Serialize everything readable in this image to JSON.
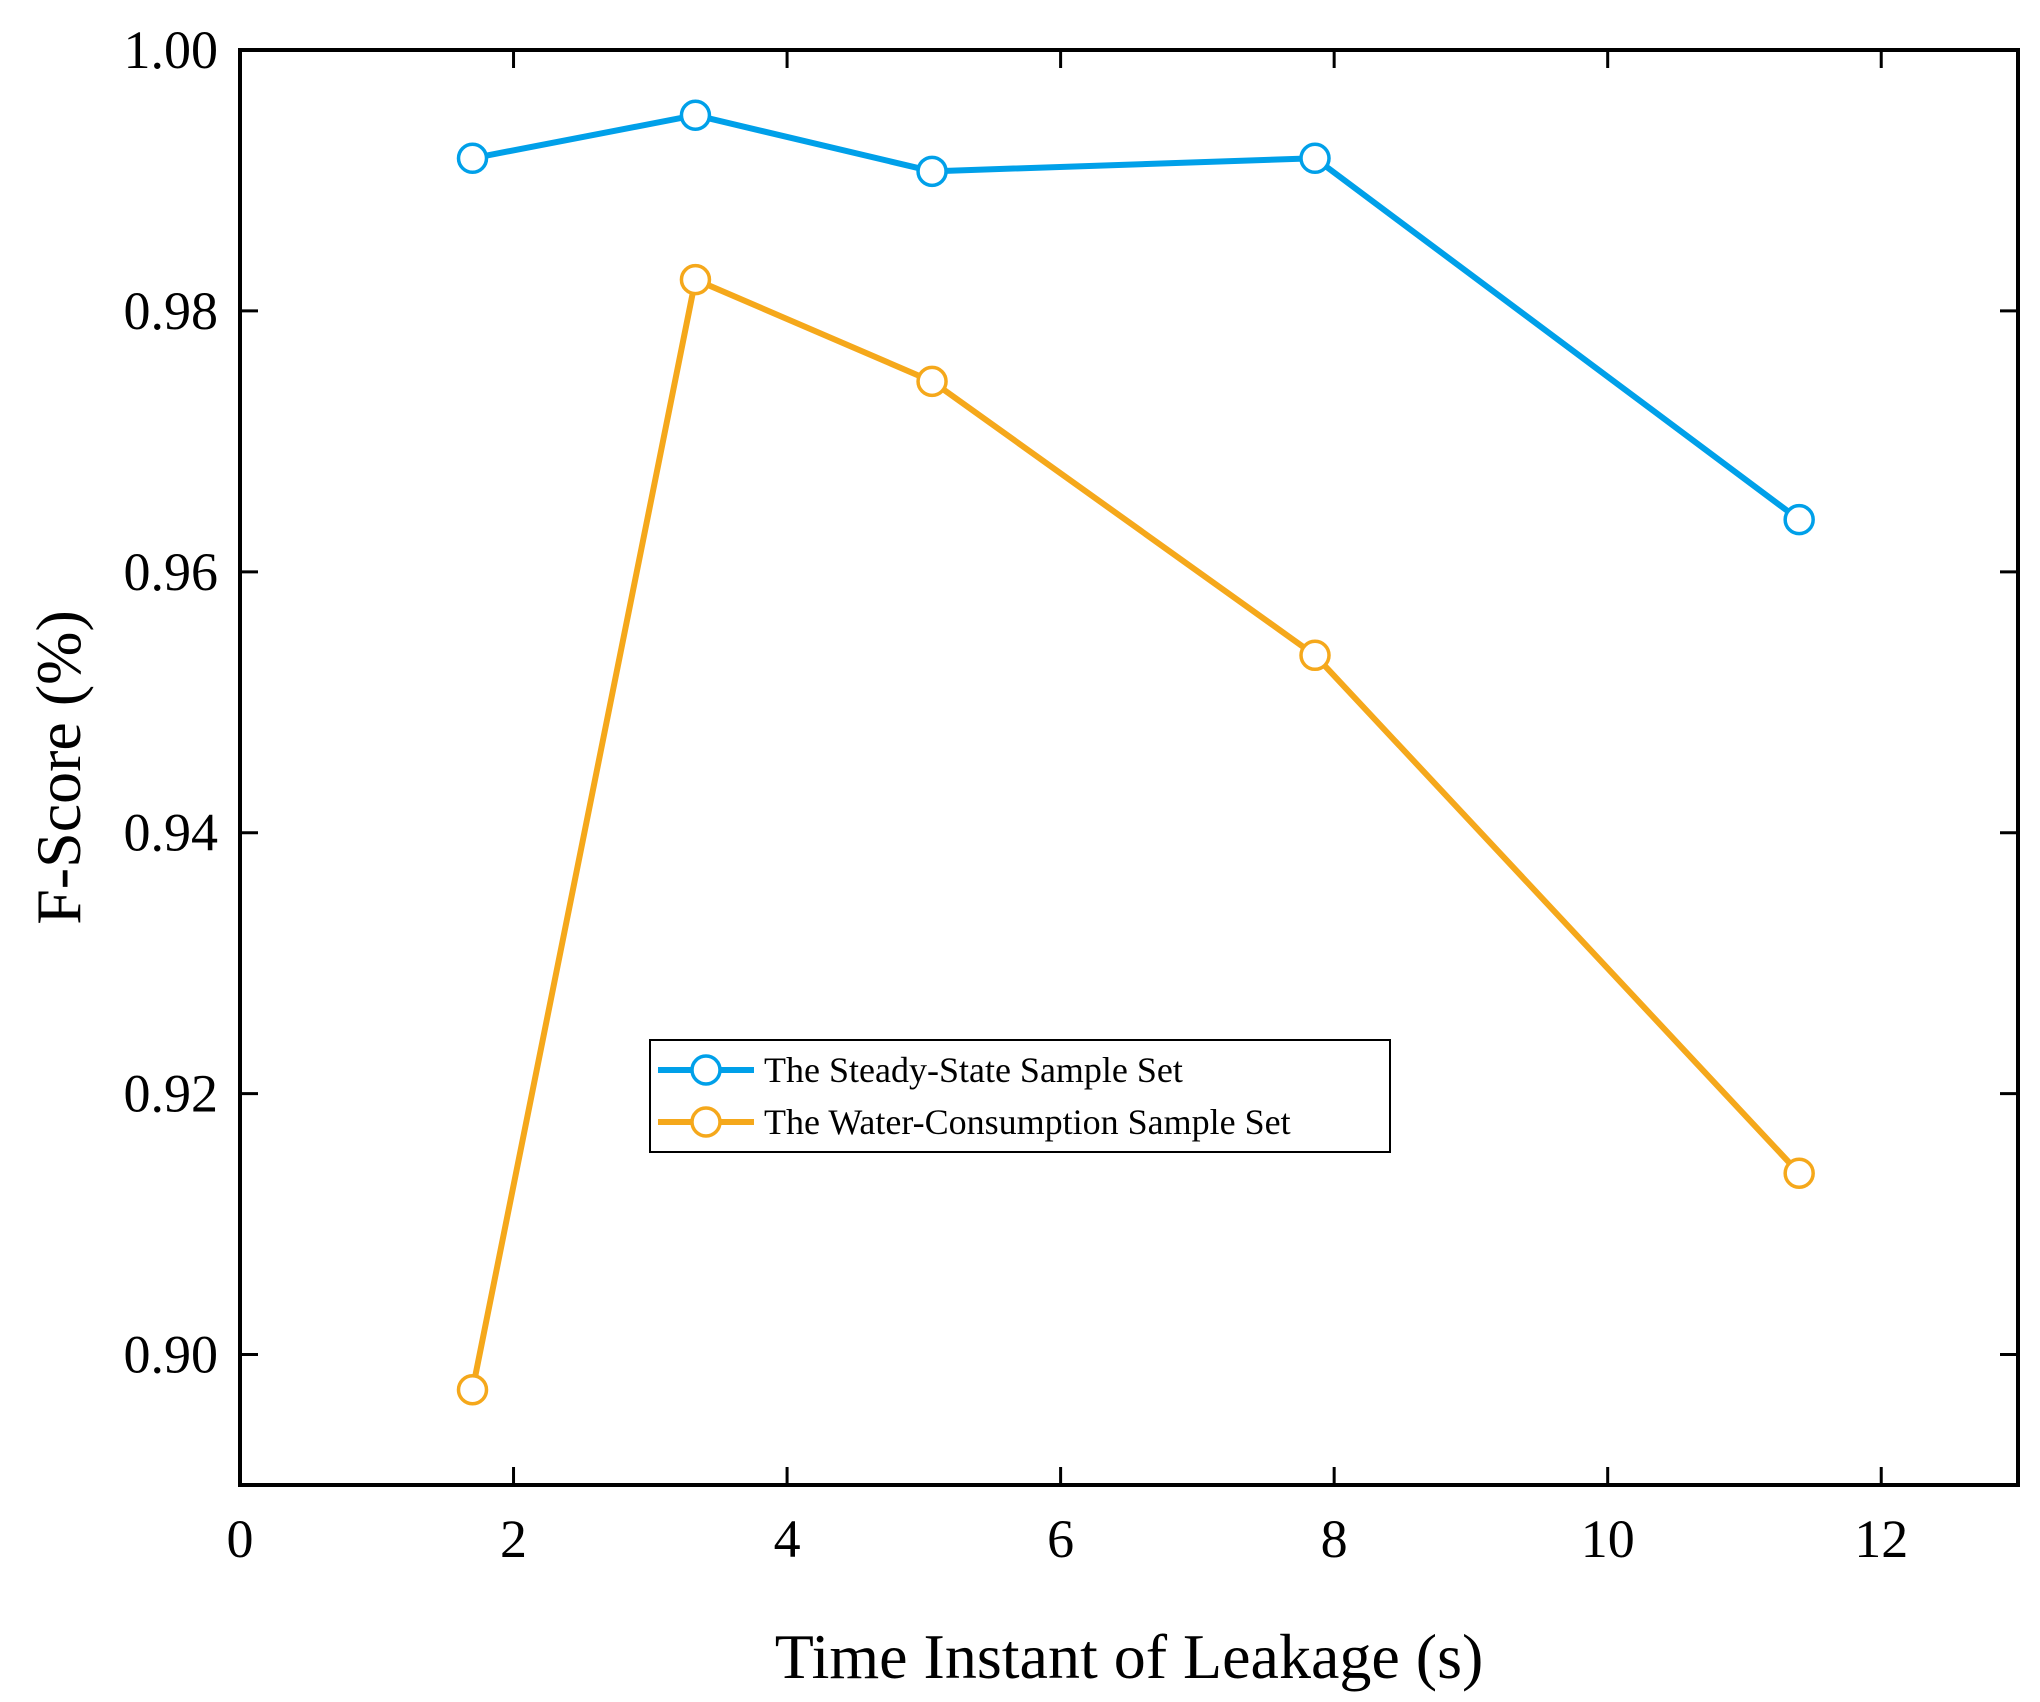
{
  "chart_data": {
    "type": "line",
    "title": "",
    "xlabel": "Time Instant of Leakage (s)",
    "ylabel": "F-Score (%)",
    "xlim": [
      0,
      13
    ],
    "ylim": [
      0.89,
      1.0
    ],
    "xticks": [
      0,
      2,
      4,
      6,
      8,
      10,
      12
    ],
    "yticks": [
      0.9,
      0.92,
      0.94,
      0.96,
      0.98,
      1.0
    ],
    "xtick_labels": [
      "0",
      "2",
      "4",
      "6",
      "8",
      "10",
      "12"
    ],
    "ytick_labels": [
      "0.90",
      "0.92",
      "0.94",
      "0.96",
      "0.98",
      "1.00"
    ],
    "grid": false,
    "legend_position": "center",
    "series": [
      {
        "name": "The Steady-State Sample Set",
        "color": "#00A0E9",
        "x": [
          1.7,
          3.33,
          5.06,
          7.86,
          11.4
        ],
        "y": [
          0.9917,
          0.995,
          0.9907,
          0.9917,
          0.964
        ]
      },
      {
        "name": "The Water-Consumption Sample Set",
        "color": "#F5A81B",
        "x": [
          1.7,
          3.33,
          5.06,
          7.86,
          11.4
        ],
        "y": [
          0.8973,
          0.9824,
          0.9746,
          0.9536,
          0.9139
        ]
      }
    ]
  }
}
